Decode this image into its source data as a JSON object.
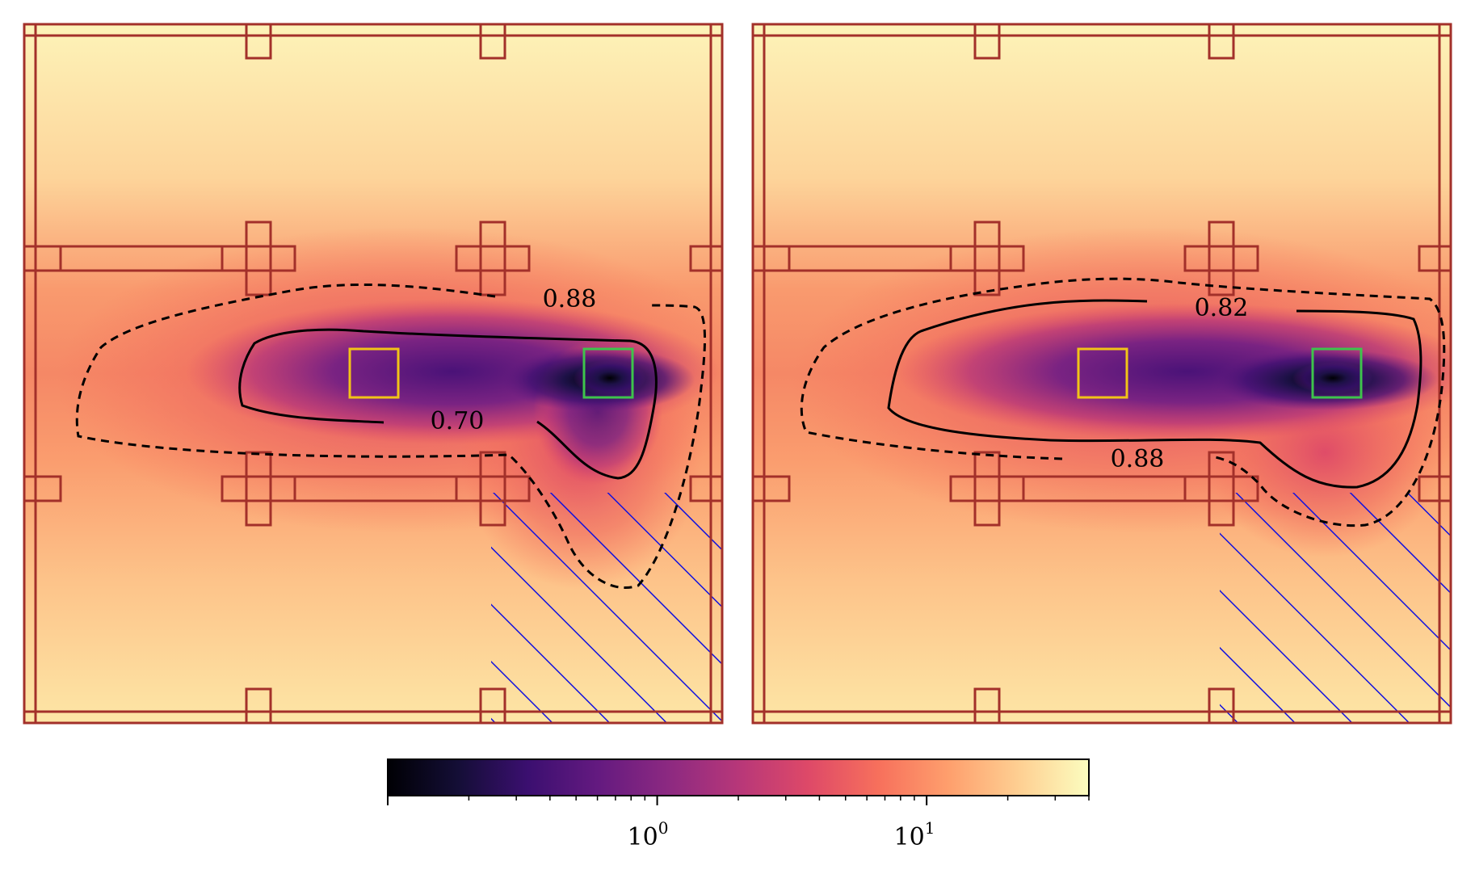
{
  "chart_data": {
    "type": "heatmap",
    "colormap": "magma",
    "panels": [
      {
        "name": "left",
        "contours": [
          {
            "level": "0.70",
            "style": "solid"
          },
          {
            "level": "0.88",
            "style": "dashed"
          }
        ],
        "markers": [
          {
            "name": "yellow-box",
            "color": "#f2c417"
          },
          {
            "name": "green-box",
            "color": "#3ec44c"
          }
        ],
        "hatched_region": true
      },
      {
        "name": "right",
        "contours": [
          {
            "level": "0.82",
            "style": "solid"
          },
          {
            "level": "0.88",
            "style": "dashed"
          }
        ],
        "markers": [
          {
            "name": "yellow-box",
            "color": "#f2c417"
          },
          {
            "name": "green-box",
            "color": "#3ec44c"
          }
        ],
        "hatched_region": true
      }
    ],
    "colorbar": {
      "scale": "log",
      "range": [
        0.1,
        40
      ],
      "major_ticks": [
        1,
        10
      ],
      "tick_labels": [
        {
          "base": "10",
          "exp": "0"
        },
        {
          "base": "10",
          "exp": "1"
        }
      ]
    }
  },
  "colors": {
    "wall": "#a3302a",
    "hatch": "#1010e0"
  }
}
